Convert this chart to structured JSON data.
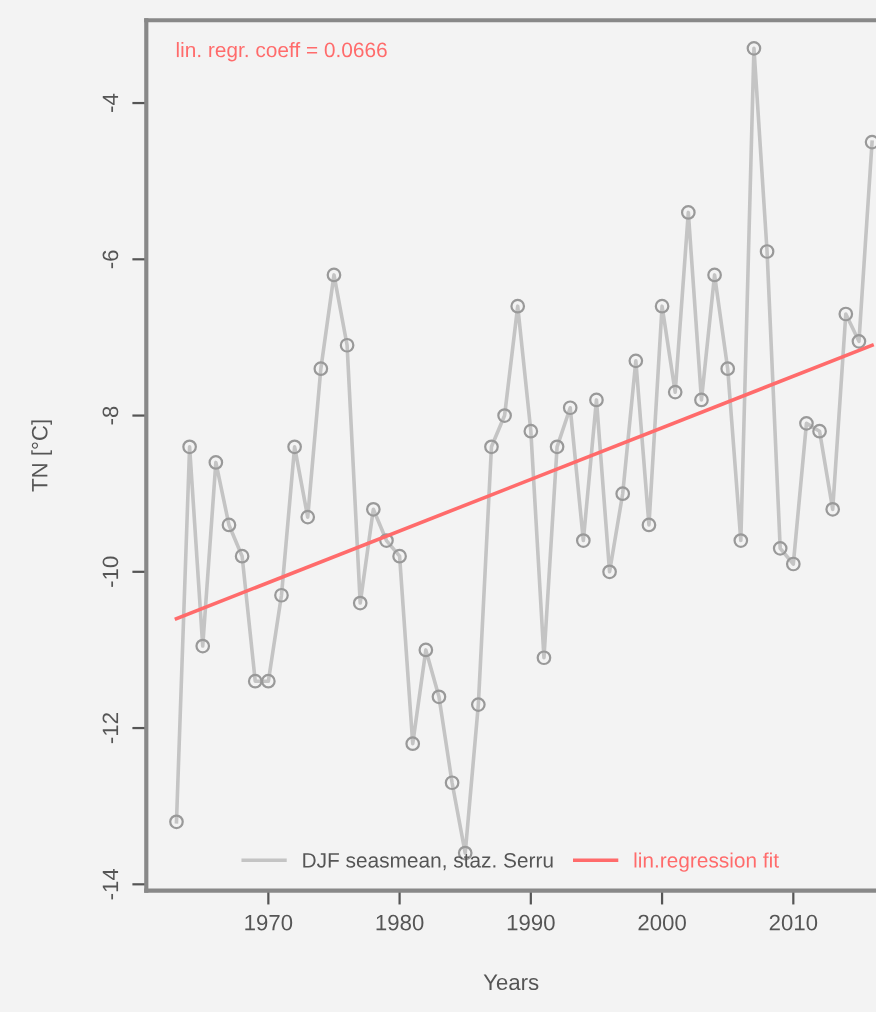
{
  "chart_data": {
    "type": "line",
    "xlabel": "Years",
    "ylabel": "TN [°C]",
    "annotations": [
      "lin. regr. coeff = 0.0666"
    ],
    "xlim": [
      1960.7,
      2016.3
    ],
    "ylim": [
      -14.08,
      -2.94
    ],
    "xticks": [
      1970,
      1980,
      1990,
      2000,
      2010
    ],
    "yticks": [
      -4,
      -6,
      -8,
      -10,
      -12,
      -14
    ],
    "grid": false,
    "legend": "bottom",
    "series": [
      {
        "name": "DJF seasmean, staz. Serru",
        "color": "#c4c4c4",
        "marker": "circle",
        "x": [
          1963,
          1964,
          1965,
          1966,
          1967,
          1968,
          1969,
          1970,
          1971,
          1972,
          1973,
          1974,
          1975,
          1976,
          1977,
          1978,
          1979,
          1980,
          1981,
          1982,
          1983,
          1984,
          1985,
          1986,
          1987,
          1988,
          1989,
          1990,
          1991,
          1992,
          1993,
          1994,
          1995,
          1996,
          1997,
          1998,
          1999,
          2000,
          2001,
          2002,
          2003,
          2004,
          2005,
          2006,
          2007,
          2008,
          2009,
          2010,
          2011,
          2012,
          2013,
          2014,
          2015,
          2016
        ],
        "values": [
          -13.2,
          -8.4,
          -10.95,
          -8.6,
          -9.4,
          -9.8,
          -11.4,
          -11.4,
          -10.3,
          -8.4,
          -9.3,
          -7.4,
          -6.2,
          -7.1,
          -10.4,
          -9.2,
          -9.6,
          -9.8,
          -12.2,
          -11.0,
          -11.6,
          -12.7,
          -13.6,
          -11.7,
          -8.4,
          -8.0,
          -6.6,
          -8.2,
          -11.1,
          -8.4,
          -7.9,
          -9.6,
          -7.8,
          -10.0,
          -9.0,
          -7.3,
          -9.4,
          -6.6,
          -7.7,
          -5.4,
          -7.8,
          -6.2,
          -7.4,
          -9.6,
          -3.3,
          -5.9,
          -9.7,
          -9.9,
          -8.1,
          -8.2,
          -9.2,
          -6.7,
          -7.05,
          -4.5
        ]
      },
      {
        "name": "lin.regression fit",
        "color": "#ff6b6b",
        "marker": "none",
        "x": [
          1963,
          2016
        ],
        "values": [
          -10.6,
          -7.1
        ]
      }
    ]
  }
}
